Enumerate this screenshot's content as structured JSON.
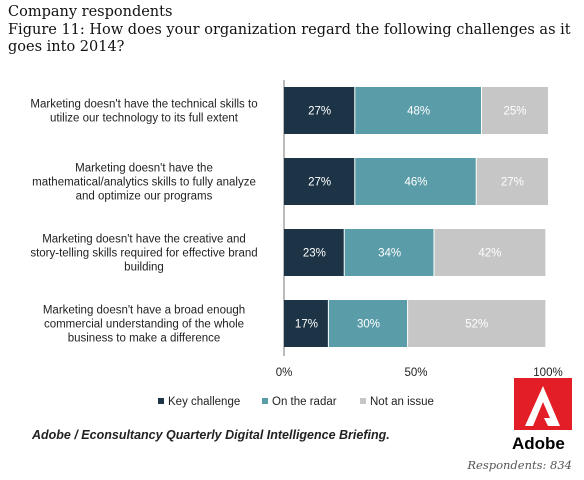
{
  "header": {
    "line1": "Company respondents",
    "line2": "Figure 11: How does your organization regard the following challenges as it goes into 2014?"
  },
  "chart_data": {
    "type": "bar",
    "orientation": "horizontal",
    "stacked": true,
    "categories": [
      [
        "Marketing doesn't have the technical skills to",
        "utilize our technology to its full extent"
      ],
      [
        "Marketing doesn't have the",
        "mathematical/analytics skills to fully analyze",
        "and optimize our programs"
      ],
      [
        "Marketing doesn't have the creative and",
        "story-telling skills required for effective brand",
        "building"
      ],
      [
        "Marketing doesn't have a broad enough",
        "commercial understanding of the whole",
        "business to make a difference"
      ]
    ],
    "series": [
      {
        "name": "Key challenge",
        "values": [
          27,
          27,
          23,
          17
        ],
        "labels": [
          "27%",
          "27%",
          "23%",
          "17%"
        ],
        "color": "#1c3445"
      },
      {
        "name": "On the radar",
        "values": [
          48,
          46,
          34,
          30
        ],
        "labels": [
          "48%",
          "46%",
          "34%",
          "30%"
        ],
        "color": "#5a9ca8"
      },
      {
        "name": "Not an issue",
        "values": [
          25,
          27,
          42,
          52
        ],
        "labels": [
          "25%",
          "27%",
          "42%",
          "52%"
        ],
        "color": "#c6c6c6"
      }
    ],
    "xlim": [
      0,
      100
    ],
    "xticks": [
      "0%",
      "50%",
      "100%"
    ],
    "legend_position": "bottom"
  },
  "footer": {
    "source": "Adobe / Econsultancy  Quarterly  Digital Intelligence  Briefing.",
    "respondents": "Respondents: 834",
    "logo_text": "Adobe"
  }
}
